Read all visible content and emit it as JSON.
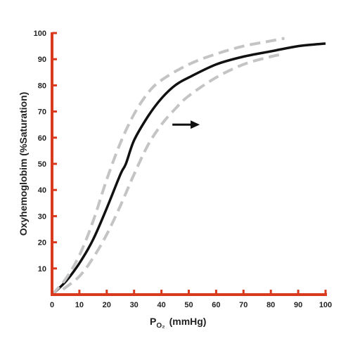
{
  "chart_data": {
    "type": "line",
    "xlabel_main": "P",
    "xlabel_sub": "O₂",
    "xlabel_unit": "(mmHg)",
    "ylabel": "Oxyhemoglobim (%Saturation)",
    "xlim": [
      0,
      100
    ],
    "ylim": [
      0,
      100
    ],
    "x_ticks": [
      0,
      10,
      20,
      30,
      40,
      50,
      60,
      70,
      80,
      90,
      100
    ],
    "y_ticks": [
      10,
      20,
      30,
      40,
      50,
      60,
      70,
      80,
      90,
      100
    ],
    "grid": false,
    "legend": "none",
    "arrow": {
      "direction": "right",
      "from": [
        44,
        65
      ],
      "to": [
        54,
        65
      ]
    },
    "series": [
      {
        "style": "solid",
        "x": [
          0,
          5,
          10,
          15,
          20,
          25,
          27,
          30,
          35,
          40,
          45,
          50,
          60,
          70,
          80,
          90,
          100
        ],
        "y": [
          0,
          5,
          12,
          21,
          33,
          46,
          50,
          59,
          68,
          75,
          80,
          83,
          88,
          91,
          93,
          95,
          96
        ]
      },
      {
        "style": "dashed",
        "x": [
          0,
          5,
          10,
          15,
          20,
          25,
          30,
          35,
          40,
          50,
          60,
          70,
          80,
          85
        ],
        "y": [
          0,
          6,
          15,
          28,
          44,
          58,
          69,
          77,
          82,
          88,
          92,
          95,
          97,
          98
        ]
      },
      {
        "style": "dashed",
        "x": [
          4,
          10,
          15,
          20,
          25,
          30,
          35,
          40,
          45,
          50,
          60,
          70,
          80,
          85
        ],
        "y": [
          2,
          7,
          14,
          23,
          34,
          46,
          57,
          65,
          71,
          76,
          83,
          88,
          91,
          92
        ]
      }
    ]
  },
  "colors": {
    "axis": "#d9391c",
    "main_curve": "#111111",
    "shifted_curve": "#c4c4c4",
    "text": "#222222"
  }
}
